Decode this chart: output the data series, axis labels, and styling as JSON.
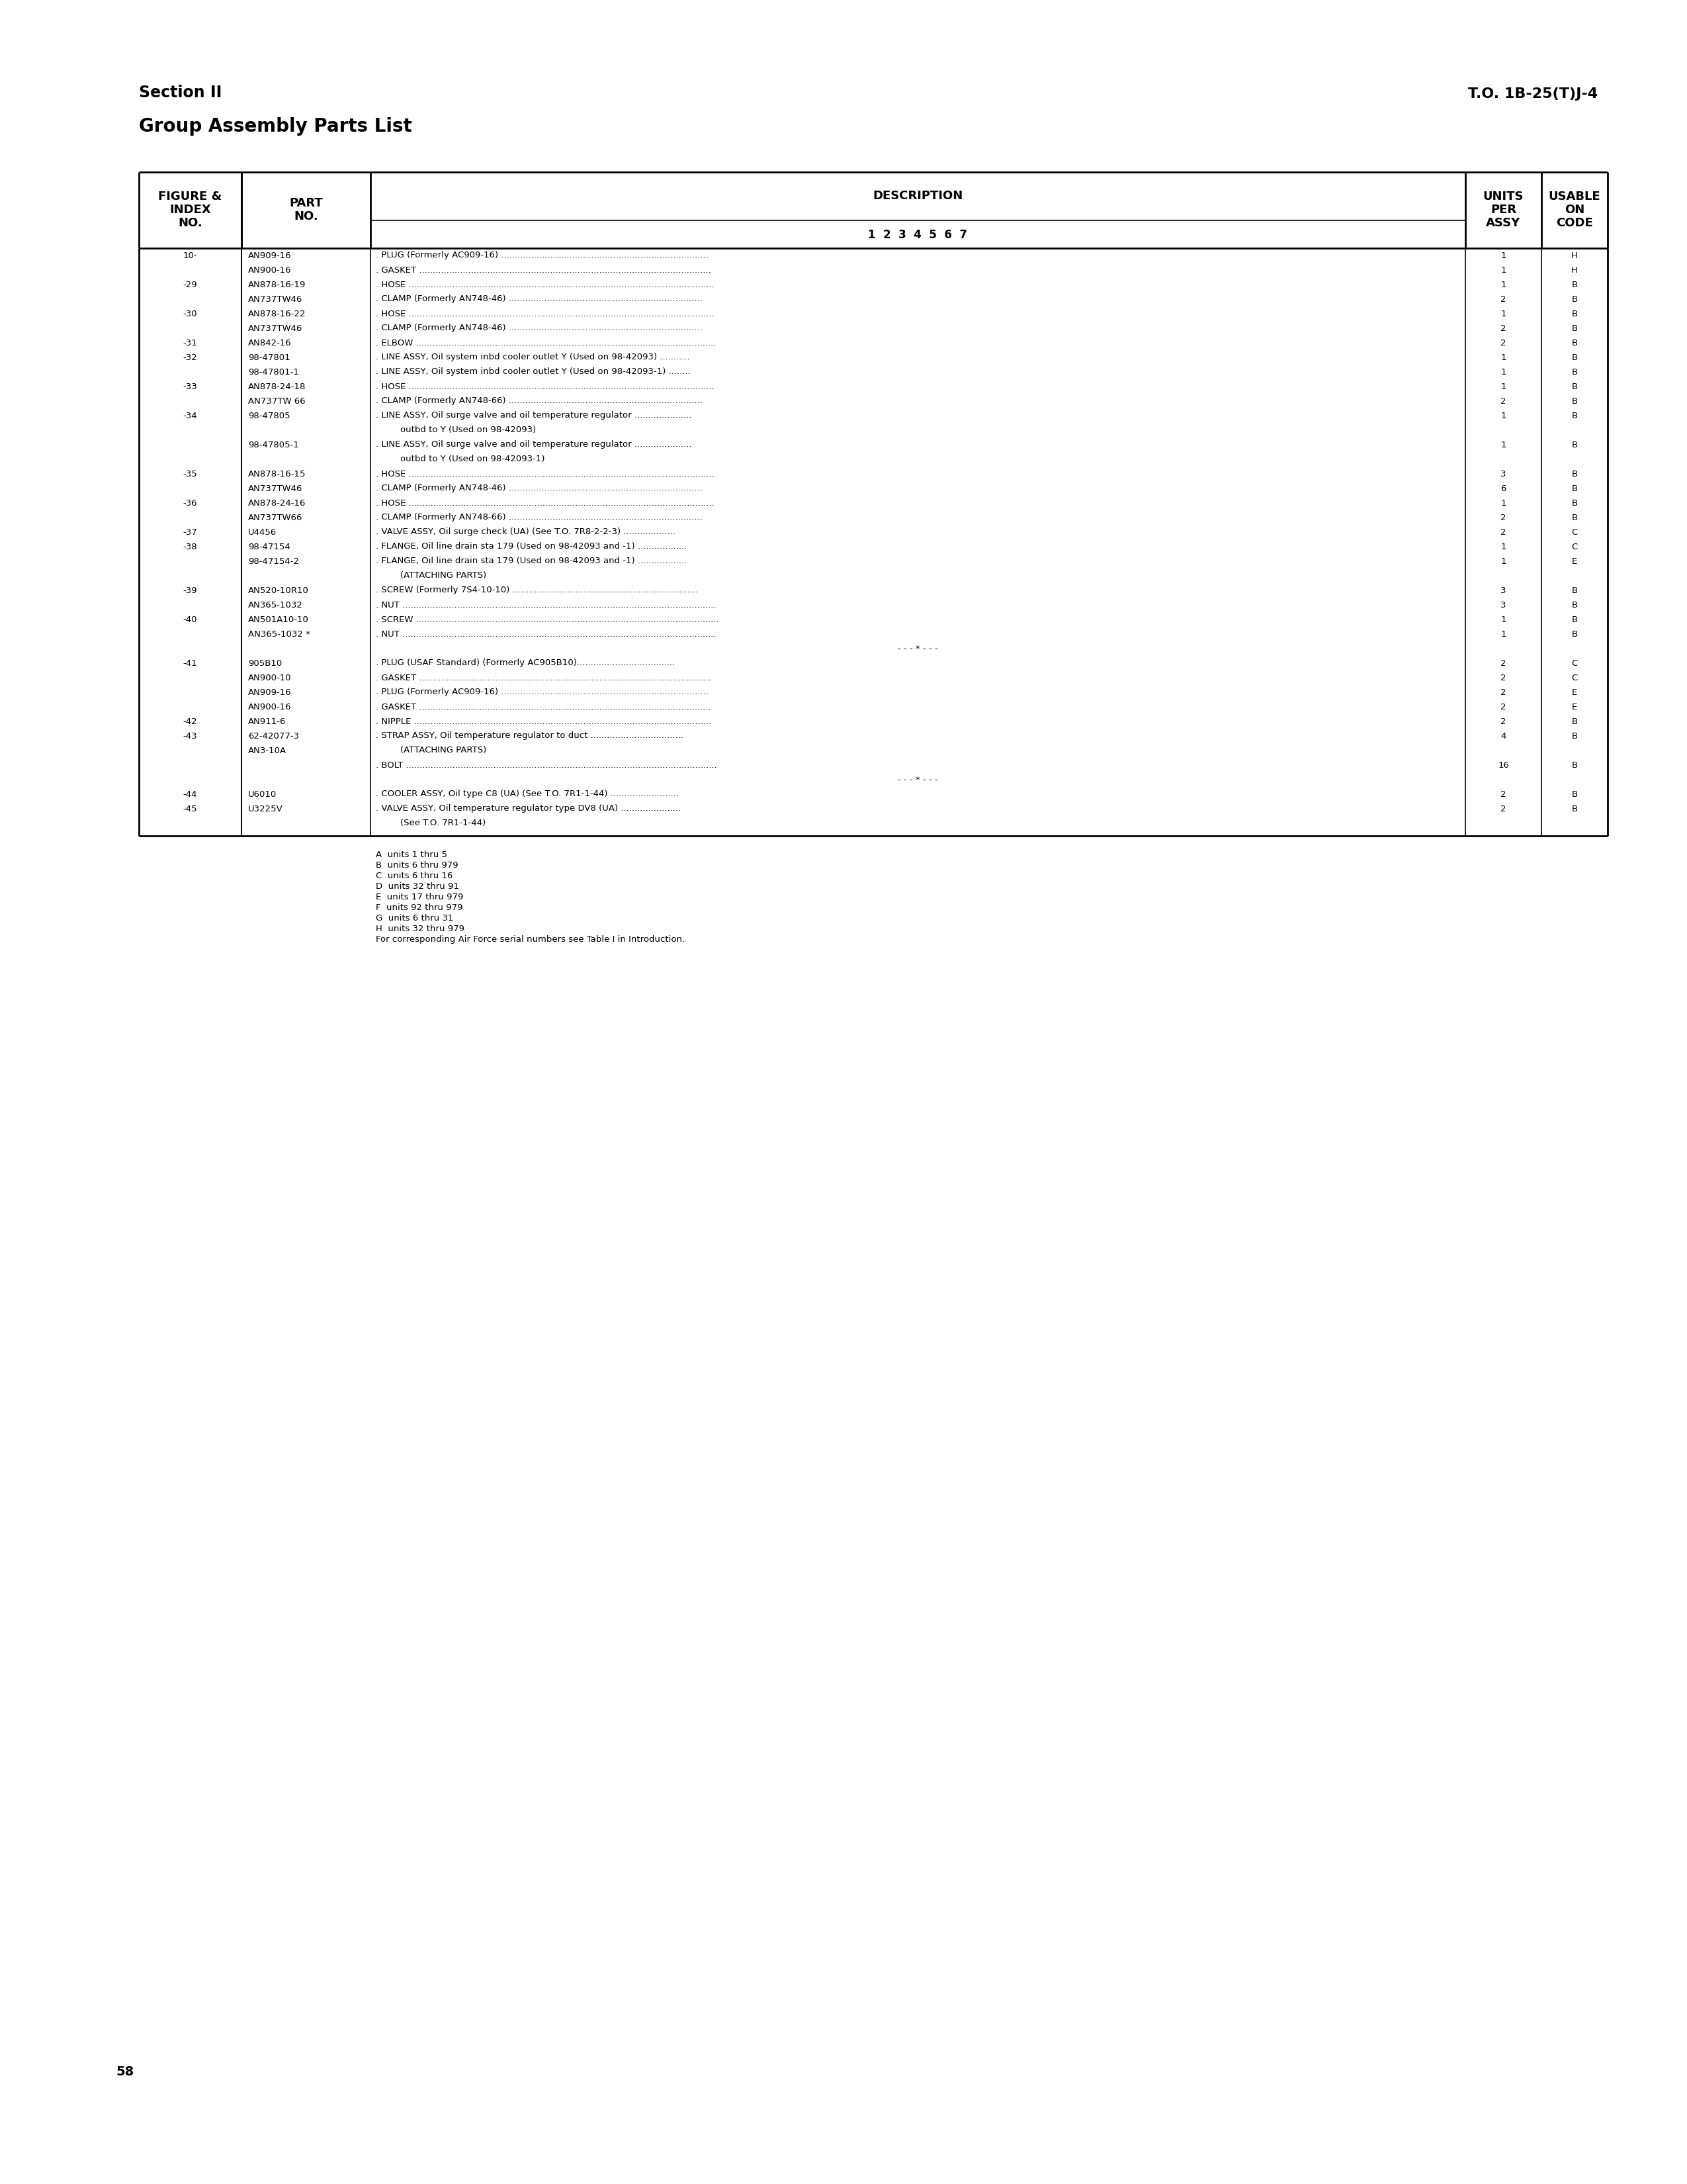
{
  "page_number": "58",
  "header_line1": "Section II",
  "header_line2": "Group Assembly Parts List",
  "top_right": "T.O. 1B-25(T)J-4",
  "sub_header_desc": "1  2  3  4  5  6  7",
  "rows": [
    {
      "fig": "10-",
      "part": "AN909-16",
      "indent": 0,
      "desc": ". PLUG (Formerly AC909-16) ............................................................................",
      "units": "1",
      "code": "H"
    },
    {
      "fig": "",
      "part": "AN900-16",
      "indent": 0,
      "desc": ". GASKET ...........................................................................................................",
      "units": "1",
      "code": "H"
    },
    {
      "fig": "-29",
      "part": "AN878-16-19",
      "indent": 0,
      "desc": ". HOSE ................................................................................................................",
      "units": "1",
      "code": "B"
    },
    {
      "fig": "",
      "part": "AN737TW46",
      "indent": 0,
      "desc": ". CLAMP (Formerly AN748-46) .......................................................................",
      "units": "2",
      "code": "B"
    },
    {
      "fig": "-30",
      "part": "AN878-16-22",
      "indent": 0,
      "desc": ". HOSE ................................................................................................................",
      "units": "1",
      "code": "B"
    },
    {
      "fig": "",
      "part": "AN737TW46",
      "indent": 0,
      "desc": ". CLAMP (Formerly AN748-46) .......................................................................",
      "units": "2",
      "code": "B"
    },
    {
      "fig": "-31",
      "part": "AN842-16",
      "indent": 0,
      "desc": ". ELBOW ..............................................................................................................",
      "units": "2",
      "code": "B"
    },
    {
      "fig": "-32",
      "part": "98-47801",
      "indent": 0,
      "desc": ". LINE ASSY, Oil system inbd cooler outlet Y (Used on 98-42093) ...........",
      "units": "1",
      "code": "B"
    },
    {
      "fig": "",
      "part": "98-47801-1",
      "indent": 0,
      "desc": ". LINE ASSY, Oil system inbd cooler outlet Y (Used on 98-42093-1) ........",
      "units": "1",
      "code": "B"
    },
    {
      "fig": "-33",
      "part": "AN878-24-18",
      "indent": 0,
      "desc": ". HOSE ................................................................................................................",
      "units": "1",
      "code": "B"
    },
    {
      "fig": "",
      "part": "AN737TW 66",
      "indent": 0,
      "desc": ". CLAMP (Formerly AN748-66) .......................................................................",
      "units": "2",
      "code": "B"
    },
    {
      "fig": "-34",
      "part": "98-47805",
      "indent": 0,
      "desc": ". LINE ASSY, Oil surge valve and oil temperature regulator .....................",
      "units": "1",
      "code": "B"
    },
    {
      "fig": "",
      "part": "",
      "indent": 2,
      "desc": "outbd to Y (Used on 98-42093)",
      "units": "",
      "code": ""
    },
    {
      "fig": "",
      "part": "98-47805-1",
      "indent": 0,
      "desc": ". LINE ASSY, Oil surge valve and oil temperature regulator .....................",
      "units": "1",
      "code": "B"
    },
    {
      "fig": "",
      "part": "",
      "indent": 2,
      "desc": "outbd to Y (Used on 98-42093-1)",
      "units": "",
      "code": ""
    },
    {
      "fig": "-35",
      "part": "AN878-16-15",
      "indent": 0,
      "desc": ". HOSE ................................................................................................................",
      "units": "3",
      "code": "B"
    },
    {
      "fig": "",
      "part": "AN737TW46",
      "indent": 0,
      "desc": ". CLAMP (Formerly AN748-46) .......................................................................",
      "units": "6",
      "code": "B"
    },
    {
      "fig": "-36",
      "part": "AN878-24-16",
      "indent": 0,
      "desc": ". HOSE ................................................................................................................",
      "units": "1",
      "code": "B"
    },
    {
      "fig": "",
      "part": "AN737TW66",
      "indent": 0,
      "desc": ". CLAMP (Formerly AN748-66) .......................................................................",
      "units": "2",
      "code": "B"
    },
    {
      "fig": "-37",
      "part": "U4456",
      "indent": 0,
      "desc": ". VALVE ASSY, Oil surge check (UA) (See T.O. 7R8-2-2-3) ...................",
      "units": "2",
      "code": "C"
    },
    {
      "fig": "-38",
      "part": "98-47154",
      "indent": 0,
      "desc": ". FLANGE, Oil line drain sta 179 (Used on 98-42093 and -1) ..................",
      "units": "1",
      "code": "C"
    },
    {
      "fig": "",
      "part": "98-47154-2",
      "indent": 0,
      "desc": ". FLANGE, Oil line drain sta 179 (Used on 98-42093 and -1) ..................",
      "units": "1",
      "code": "E"
    },
    {
      "fig": "",
      "part": "",
      "indent": 2,
      "desc": "(ATTACHING PARTS)",
      "units": "",
      "code": ""
    },
    {
      "fig": "-39",
      "part": "AN520-10R10",
      "indent": 0,
      "desc": ". SCREW (Formerly 7S4-10-10) ....................................................................",
      "units": "3",
      "code": "B"
    },
    {
      "fig": "",
      "part": "AN365-1032",
      "indent": 0,
      "desc": ". NUT ...................................................................................................................",
      "units": "3",
      "code": "B"
    },
    {
      "fig": "-40",
      "part": "AN501A10-10",
      "indent": 0,
      "desc": ". SCREW ...............................................................................................................",
      "units": "1",
      "code": "B"
    },
    {
      "fig": "",
      "part": "AN365-1032 *",
      "indent": 0,
      "desc": ". NUT ...................................................................................................................",
      "units": "1",
      "code": "B"
    },
    {
      "fig": "",
      "part": "",
      "indent": 0,
      "desc": "- - - * - - -",
      "units": "",
      "code": ""
    },
    {
      "fig": "-41",
      "part": "905B10",
      "indent": 0,
      "desc": ". PLUG (USAF Standard) (Formerly AC905B10)....................................",
      "units": "2",
      "code": "C"
    },
    {
      "fig": "",
      "part": "AN900-10",
      "indent": 0,
      "desc": ". GASKET ...........................................................................................................",
      "units": "2",
      "code": "C"
    },
    {
      "fig": "",
      "part": "AN909-16",
      "indent": 0,
      "desc": ". PLUG (Formerly AC909-16) ............................................................................",
      "units": "2",
      "code": "E"
    },
    {
      "fig": "",
      "part": "AN900-16",
      "indent": 0,
      "desc": ". GASKET ...........................................................................................................",
      "units": "2",
      "code": "E"
    },
    {
      "fig": "-42",
      "part": "AN911-6",
      "indent": 0,
      "desc": ". NIPPLE .............................................................................................................",
      "units": "2",
      "code": "B"
    },
    {
      "fig": "-43",
      "part": "62-42077-3",
      "indent": 0,
      "desc": ". STRAP ASSY, Oil temperature regulator to duct ..................................",
      "units": "4",
      "code": "B"
    },
    {
      "fig": "",
      "part": "AN3-10A",
      "indent": 2,
      "desc": "(ATTACHING PARTS)",
      "units": "",
      "code": ""
    },
    {
      "fig": "",
      "part": "",
      "indent": 0,
      "desc": ". BOLT ..................................................................................................................",
      "units": "16",
      "code": "B"
    },
    {
      "fig": "",
      "part": "",
      "indent": 0,
      "desc": "- - - * - - -",
      "units": "",
      "code": ""
    },
    {
      "fig": "-44",
      "part": "U6010",
      "indent": 0,
      "desc": ". COOLER ASSY, Oil type C8 (UA) (See T.O. 7R1-1-44) .........................",
      "units": "2",
      "code": "B"
    },
    {
      "fig": "-45",
      "part": "U3225V",
      "indent": 0,
      "desc": ". VALVE ASSY, Oil temperature regulator type DV8 (UA) ......................",
      "units": "2",
      "code": "B"
    },
    {
      "fig": "",
      "part": "",
      "indent": 2,
      "desc": "(See T.O. 7R1-1-44)",
      "units": "",
      "code": ""
    }
  ],
  "footer_notes": [
    "A  units 1 thru 5",
    "B  units 6 thru 979",
    "C  units 6 thru 16",
    "D  units 32 thru 91",
    "E  units 17 thru 979",
    "F  units 92 thru 979",
    "G  units 6 thru 31",
    "H  units 32 thru 979",
    "For corresponding Air Force serial numbers see Table I in Introduction."
  ],
  "bg_color": "#ffffff",
  "text_color": "#000000"
}
